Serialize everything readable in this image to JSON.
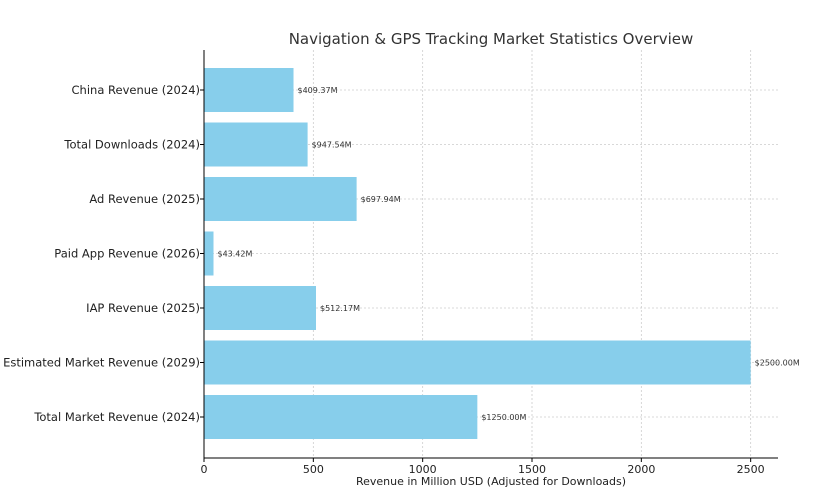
{
  "chart_data": {
    "type": "bar",
    "orientation": "horizontal",
    "title": "Navigation & GPS Tracking Market Statistics Overview",
    "xlabel": "Revenue in Million USD (Adjusted for Downloads)",
    "ylabel": "",
    "xlim": [
      0,
      2625
    ],
    "xticks": [
      0,
      500,
      1000,
      1500,
      2000,
      2500
    ],
    "grid": true,
    "bar_color": "#87ceeb",
    "categories": [
      "China Revenue (2024)",
      "Total Downloads (2024)",
      "Ad Revenue (2025)",
      "Paid App Revenue (2026)",
      "IAP Revenue (2025)",
      "Estimated Market Revenue (2029)",
      "Total Market Revenue (2024)"
    ],
    "values": [
      409.37,
      947.54,
      697.94,
      43.42,
      512.17,
      2500.0,
      1250.0
    ],
    "bar_values": [
      409.37,
      473.77,
      697.94,
      43.42,
      512.17,
      2500.0,
      1250.0
    ],
    "data_labels": [
      "$409.37M",
      "$947.54M",
      "$697.94M",
      "$43.42M",
      "$512.17M",
      "$2500.00M",
      "$1250.00M"
    ]
  }
}
